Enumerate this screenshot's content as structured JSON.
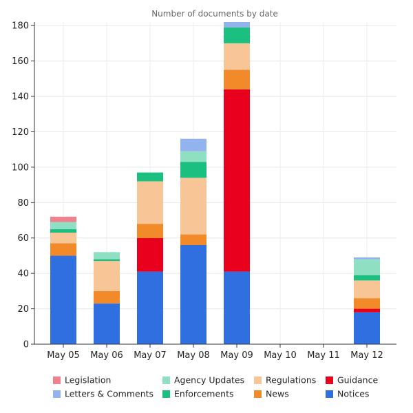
{
  "chart_data": {
    "type": "bar",
    "stacked": true,
    "title": "Number of documents by date",
    "xlabel": "",
    "ylabel": "",
    "categories": [
      "May 05",
      "May 06",
      "May 07",
      "May 08",
      "May 09",
      "May 10",
      "May 11",
      "May 12"
    ],
    "ylim": [
      0,
      182
    ],
    "yticks": [
      0,
      20,
      40,
      60,
      80,
      100,
      120,
      140,
      160,
      180
    ],
    "grid": true,
    "legend_position": "bottom",
    "series": [
      {
        "name": "Notices",
        "color": "#2f6fe0",
        "values": [
          50,
          23,
          41,
          56,
          41,
          0,
          0,
          18
        ]
      },
      {
        "name": "Guidance",
        "color": "#e8001c",
        "values": [
          0,
          0,
          19,
          0,
          103,
          0,
          0,
          2
        ]
      },
      {
        "name": "News",
        "color": "#f28a2a",
        "values": [
          7,
          7,
          8,
          6,
          11,
          0,
          0,
          6
        ]
      },
      {
        "name": "Regulations",
        "color": "#f8c596",
        "values": [
          6,
          17,
          24,
          32,
          15,
          0,
          0,
          10
        ]
      },
      {
        "name": "Enforcements",
        "color": "#1bbf7f",
        "values": [
          2,
          1,
          5,
          9,
          9,
          0,
          0,
          3
        ]
      },
      {
        "name": "Agency Updates",
        "color": "#8fe0c2",
        "values": [
          4,
          4,
          0,
          6,
          0,
          0,
          0,
          9
        ]
      },
      {
        "name": "Letters & Comments",
        "color": "#93b3ef",
        "values": [
          0,
          0,
          0,
          7,
          3,
          0,
          0,
          1
        ]
      },
      {
        "name": "Legislation",
        "color": "#ef808d",
        "values": [
          3,
          0,
          0,
          0,
          0,
          0,
          0,
          0
        ]
      }
    ],
    "legend_order": [
      "Legislation",
      "Agency Updates",
      "Regulations",
      "Guidance",
      "Letters & Comments",
      "Enforcements",
      "News",
      "Notices"
    ]
  }
}
